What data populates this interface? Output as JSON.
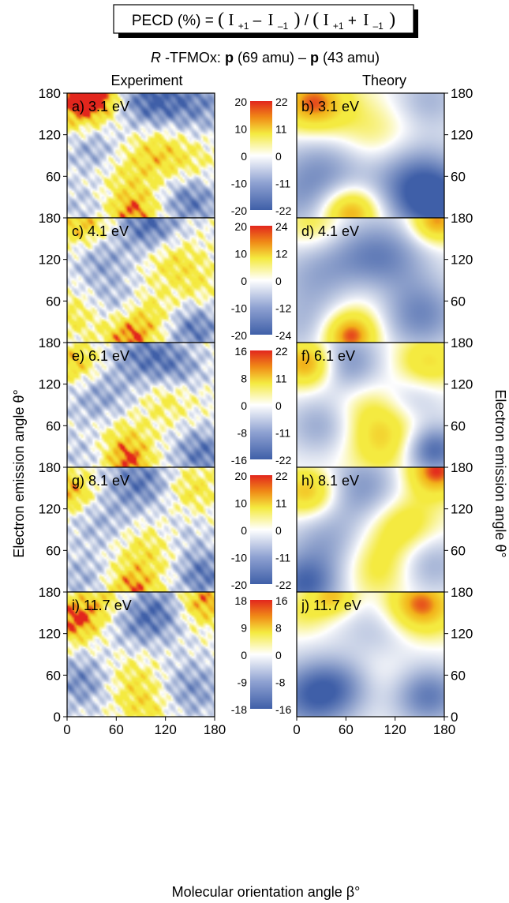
{
  "formula": {
    "lhs": "PECD (%) = ",
    "open1": "(",
    "i_plus_num": "I",
    "sub_plus": "+1",
    "minus": "–",
    "i_minus_num": "I",
    "sub_minus": "–1",
    "close1": ")",
    "slash": " / ",
    "open2": "(",
    "i_plus_den": "I",
    "sub_plus_den": "+1",
    "plus": "+",
    "i_minus_den": "I",
    "sub_minus_den": "–1",
    "close2": ")"
  },
  "subtitle": {
    "r_italic": "R",
    "molecule": "-TFMOx: ",
    "p1": "p",
    "mass1": "(69 amu) – ",
    "p2": "p",
    "mass2": "(43 amu)"
  },
  "column_headers": {
    "left": "Experiment",
    "right": "Theory"
  },
  "axes": {
    "ylabel_left": "Electron emission angle θ°",
    "ylabel_right": "Electron emission angle θ°",
    "xlabel": "Molecular orientation angle β°",
    "y_ticks": [
      "0",
      "60",
      "120",
      "180"
    ],
    "x_ticks": [
      "0",
      "60",
      "120",
      "180"
    ]
  },
  "colors": {
    "neg": "#3f5fa8",
    "zero": "#ffffff",
    "pos_low": "#f4ea40",
    "pos_mid": "#f2b21a",
    "pos_high": "#e2261d"
  },
  "chart_data": {
    "type": "heatmap",
    "x_range": [
      0,
      180
    ],
    "y_range": [
      0,
      180
    ],
    "rows": [
      {
        "energy": "3.1 eV",
        "exp_label": "a) 3.1 eV",
        "theo_label": "b) 3.1 eV",
        "exp_scale": [
          "20",
          "10",
          "0",
          "-10",
          "-20"
        ],
        "theo_scale": [
          "22",
          "11",
          "0",
          "-11",
          "-22"
        ],
        "exp_blobs": [
          [
            10,
            165,
            0.8,
            30
          ],
          [
            35,
            175,
            0.9,
            22
          ],
          [
            100,
            170,
            -0.9,
            30
          ],
          [
            160,
            165,
            -0.6,
            30
          ],
          [
            30,
            100,
            -0.5,
            25
          ],
          [
            110,
            100,
            0.5,
            25
          ],
          [
            80,
            55,
            0.4,
            30
          ],
          [
            80,
            5,
            0.8,
            22
          ],
          [
            150,
            25,
            -0.8,
            25
          ],
          [
            20,
            20,
            -0.3,
            25
          ],
          [
            150,
            80,
            0.3,
            25
          ]
        ],
        "theo_blobs": [
          [
            20,
            165,
            0.95,
            30
          ],
          [
            65,
            10,
            1.0,
            26
          ],
          [
            90,
            110,
            0.45,
            40
          ],
          [
            140,
            60,
            -0.7,
            40
          ],
          [
            40,
            75,
            -0.6,
            40
          ],
          [
            160,
            170,
            -0.4,
            30
          ],
          [
            170,
            20,
            -0.9,
            35
          ],
          [
            5,
            25,
            -0.4,
            35
          ]
        ]
      },
      {
        "energy": "4.1 eV",
        "exp_label": "c) 4.1 eV",
        "theo_label": "d) 4.1 eV",
        "exp_scale": [
          "20",
          "10",
          "0",
          "-10",
          "-20"
        ],
        "theo_scale": [
          "24",
          "12",
          "0",
          "-12",
          "-24"
        ],
        "exp_blobs": [
          [
            20,
            170,
            0.7,
            25
          ],
          [
            100,
            170,
            -0.9,
            28
          ],
          [
            40,
            120,
            -0.5,
            25
          ],
          [
            130,
            120,
            0.5,
            25
          ],
          [
            60,
            60,
            -0.4,
            25
          ],
          [
            100,
            40,
            0.5,
            25
          ],
          [
            75,
            5,
            0.85,
            22
          ],
          [
            155,
            20,
            -0.8,
            25
          ],
          [
            10,
            40,
            0.4,
            22
          ],
          [
            160,
            80,
            0.3,
            22
          ]
        ],
        "theo_blobs": [
          [
            170,
            175,
            0.9,
            22
          ],
          [
            65,
            10,
            1.0,
            24
          ],
          [
            100,
            120,
            -0.8,
            40
          ],
          [
            30,
            90,
            -0.5,
            40
          ],
          [
            150,
            40,
            -0.7,
            35
          ],
          [
            80,
            70,
            0.4,
            35
          ],
          [
            20,
            170,
            0.4,
            25
          ],
          [
            10,
            20,
            -0.3,
            30
          ]
        ]
      },
      {
        "energy": "6.1 eV",
        "exp_label": "e) 6.1 eV",
        "theo_label": "f) 6.1 eV",
        "exp_scale": [
          "16",
          "8",
          "0",
          "-8",
          "-16"
        ],
        "theo_scale": [
          "22",
          "11",
          "0",
          "-11",
          "-22"
        ],
        "exp_blobs": [
          [
            10,
            150,
            0.7,
            22
          ],
          [
            100,
            160,
            -0.8,
            30
          ],
          [
            40,
            100,
            -0.5,
            30
          ],
          [
            120,
            100,
            0.4,
            25
          ],
          [
            70,
            40,
            0.5,
            25
          ],
          [
            75,
            5,
            0.8,
            20
          ],
          [
            165,
            20,
            -0.8,
            25
          ],
          [
            140,
            140,
            -0.4,
            22
          ],
          [
            20,
            20,
            -0.3,
            22
          ]
        ],
        "theo_blobs": [
          [
            15,
            150,
            1.0,
            24
          ],
          [
            60,
            150,
            -0.7,
            30
          ],
          [
            160,
            150,
            0.6,
            28
          ],
          [
            90,
            90,
            0.3,
            35
          ],
          [
            30,
            60,
            -0.5,
            30
          ],
          [
            110,
            40,
            0.6,
            35
          ],
          [
            165,
            25,
            -1.0,
            25
          ],
          [
            140,
            100,
            -0.4,
            30
          ]
        ]
      },
      {
        "energy": "8.1 eV",
        "exp_label": "g) 8.1 eV",
        "theo_label": "h) 8.1 eV",
        "exp_scale": [
          "20",
          "10",
          "0",
          "-10",
          "-20"
        ],
        "theo_scale": [
          "22",
          "11",
          "0",
          "-11",
          "-22"
        ],
        "exp_blobs": [
          [
            5,
            145,
            0.8,
            22
          ],
          [
            90,
            160,
            -0.8,
            30
          ],
          [
            150,
            150,
            0.5,
            25
          ],
          [
            40,
            100,
            -0.4,
            30
          ],
          [
            100,
            60,
            0.5,
            30
          ],
          [
            80,
            5,
            0.8,
            22
          ],
          [
            165,
            25,
            -0.8,
            25
          ],
          [
            20,
            20,
            -0.4,
            25
          ],
          [
            140,
            80,
            -0.3,
            25
          ]
        ],
        "theo_blobs": [
          [
            170,
            175,
            1.0,
            26
          ],
          [
            15,
            145,
            0.8,
            25
          ],
          [
            80,
            150,
            -0.6,
            35
          ],
          [
            130,
            100,
            0.5,
            30
          ],
          [
            40,
            70,
            -0.5,
            35
          ],
          [
            10,
            10,
            -0.9,
            30
          ],
          [
            100,
            40,
            0.5,
            35
          ],
          [
            160,
            40,
            -0.5,
            30
          ]
        ]
      },
      {
        "energy": "11.7 eV",
        "exp_label": "i) 11.7 eV",
        "theo_label": "j) 11.7 eV",
        "exp_scale": [
          "18",
          "9",
          "0",
          "-9",
          "-18"
        ],
        "theo_scale": [
          "16",
          "8",
          "0",
          "-8",
          "-16"
        ],
        "exp_blobs": [
          [
            10,
            140,
            1.0,
            24
          ],
          [
            165,
            165,
            0.9,
            22
          ],
          [
            90,
            140,
            -0.7,
            30
          ],
          [
            80,
            50,
            0.5,
            30
          ],
          [
            20,
            50,
            -0.7,
            28
          ],
          [
            150,
            40,
            -0.6,
            30
          ],
          [
            50,
            170,
            0.5,
            22
          ],
          [
            120,
            160,
            -0.4,
            25
          ],
          [
            100,
            10,
            0.4,
            22
          ]
        ],
        "theo_blobs": [
          [
            150,
            160,
            1.0,
            30
          ],
          [
            45,
            175,
            0.7,
            20
          ],
          [
            20,
            30,
            -0.9,
            35
          ],
          [
            100,
            120,
            -0.4,
            35
          ],
          [
            90,
            70,
            0.3,
            35
          ],
          [
            160,
            30,
            -0.8,
            30
          ],
          [
            60,
            50,
            -0.5,
            30
          ],
          [
            10,
            150,
            0.3,
            22
          ]
        ]
      }
    ]
  }
}
